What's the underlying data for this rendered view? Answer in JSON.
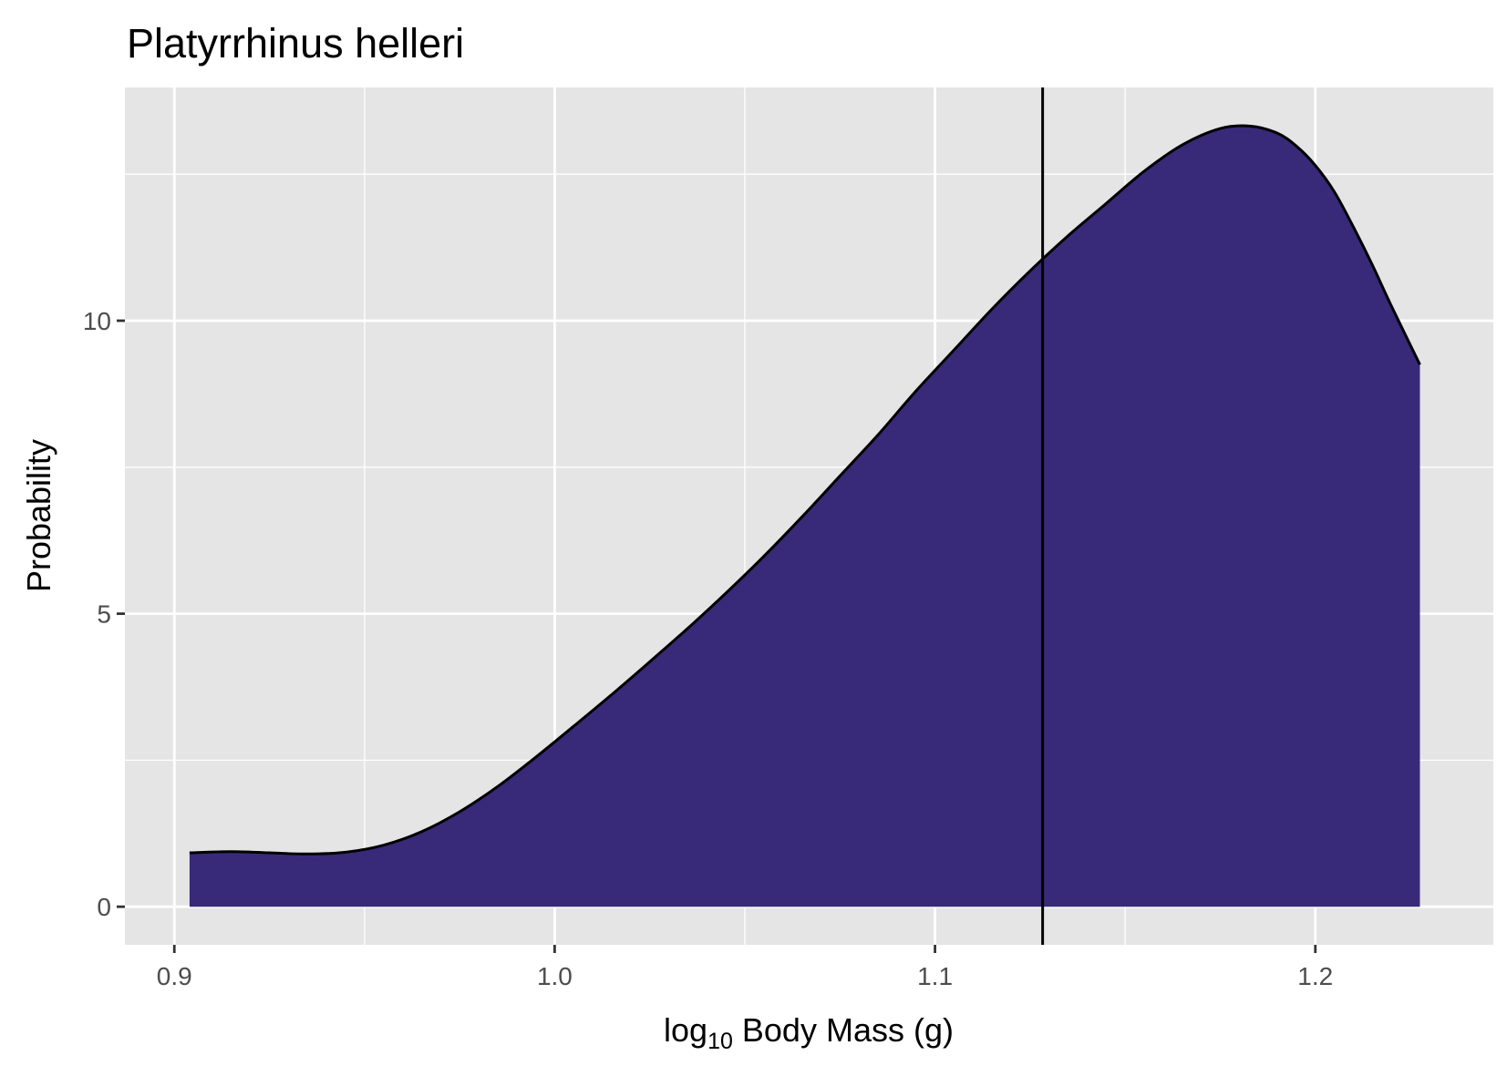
{
  "chart_data": {
    "type": "area",
    "title": "Platyrrhinus helleri",
    "xlabel": {
      "base": "log",
      "subscript": "10",
      "rest": " Body Mass (g)"
    },
    "ylabel": "Probability",
    "xlim": [
      0.887,
      1.2468
    ],
    "ylim": [
      -0.65,
      13.98
    ],
    "x_ticks": [
      0.9,
      1.0,
      1.1,
      1.2
    ],
    "x_tick_labels": [
      "0.9",
      "1.0",
      "1.1",
      "1.2"
    ],
    "x_minor": [
      0.95,
      1.05,
      1.15
    ],
    "y_ticks": [
      0,
      5,
      10
    ],
    "y_tick_labels": [
      "0",
      "5",
      "10"
    ],
    "y_minor": [
      2.5,
      7.5,
      12.5
    ],
    "vline_x": 1.1283,
    "grid": true,
    "colors": {
      "fill": "#382a78",
      "line": "#000000",
      "panel": "#e5e5e5",
      "grid": "#ffffff"
    },
    "series": [
      {
        "x": [
          0.904,
          0.915,
          0.925,
          0.935,
          0.945,
          0.955,
          0.965,
          0.975,
          0.985,
          0.995,
          1.005,
          1.015,
          1.025,
          1.035,
          1.045,
          1.055,
          1.065,
          1.075,
          1.085,
          1.095,
          1.105,
          1.115,
          1.125,
          1.135,
          1.145,
          1.155,
          1.165,
          1.175,
          1.183,
          1.19,
          1.195,
          1.2,
          1.205,
          1.21,
          1.215,
          1.22,
          1.2275
        ],
        "y": [
          0.92,
          0.94,
          0.92,
          0.9,
          0.93,
          1.05,
          1.28,
          1.62,
          2.05,
          2.55,
          3.08,
          3.62,
          4.18,
          4.75,
          5.35,
          5.98,
          6.65,
          7.35,
          8.05,
          8.8,
          9.5,
          10.2,
          10.85,
          11.45,
          12.0,
          12.55,
          13.0,
          13.28,
          13.32,
          13.2,
          12.98,
          12.65,
          12.2,
          11.6,
          10.95,
          10.25,
          9.25
        ]
      }
    ]
  }
}
